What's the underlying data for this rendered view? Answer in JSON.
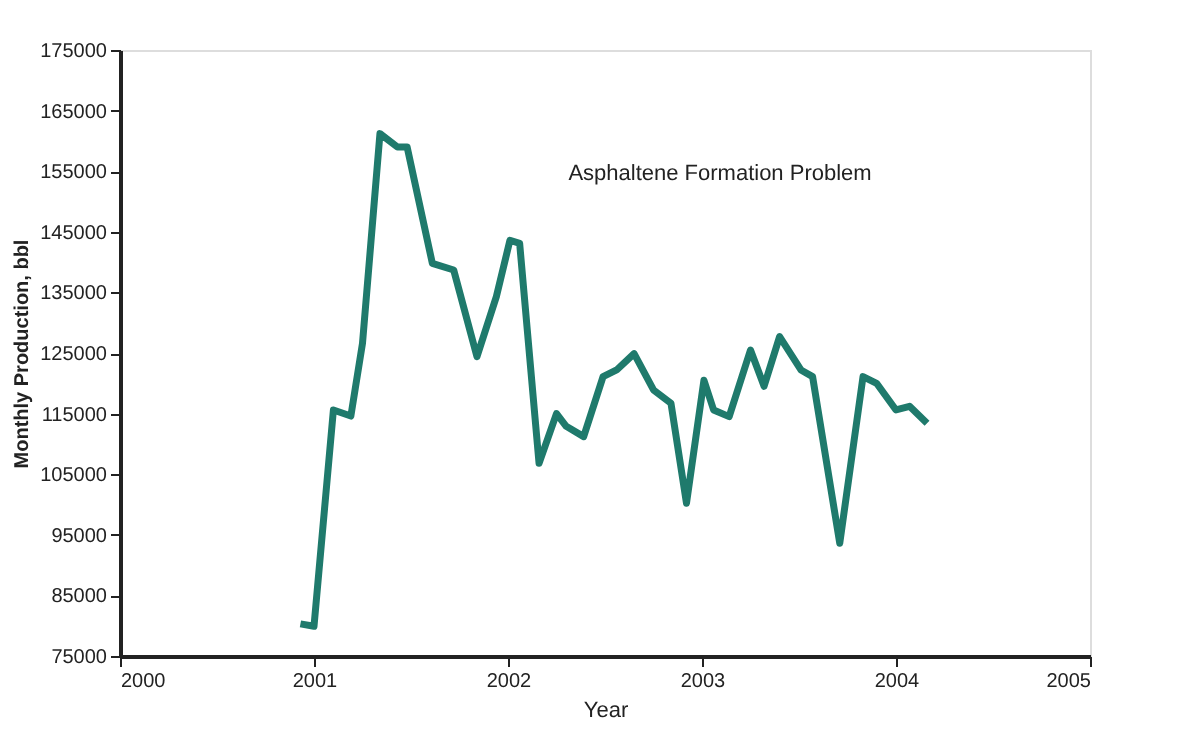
{
  "chart_data": {
    "type": "line",
    "xlabel": "Year",
    "ylabel": "Monthly Production, bbl",
    "annotations": [
      "Asphaltene Formation Problem"
    ],
    "xlim": [
      2000,
      2005
    ],
    "xticks": [
      2000,
      2001,
      2002,
      2003,
      2004,
      2005
    ],
    "ylim": [
      75000,
      175000
    ],
    "yticks": [
      75000,
      85000,
      95000,
      105000,
      115000,
      125000,
      135000,
      145000,
      155000,
      165000,
      175000
    ],
    "grid": false,
    "marker": "none",
    "line_style": "solid",
    "series": [
      {
        "color": "#1f7a6c",
        "x": [
          2000.93,
          2001.0,
          2001.1,
          2001.19,
          2001.25,
          2001.34,
          2001.43,
          2001.48,
          2001.61,
          2001.72,
          2001.84,
          2001.94,
          2002.01,
          2002.06,
          2002.16,
          2002.25,
          2002.3,
          2002.39,
          2002.49,
          2002.56,
          2002.65,
          2002.75,
          2002.84,
          2002.92,
          2003.01,
          2003.06,
          2003.14,
          2003.25,
          2003.32,
          2003.4,
          2003.51,
          2003.57,
          2003.71,
          2003.83,
          2003.9,
          2004.0,
          2004.07,
          2004.16
        ],
        "values": [
          80300,
          79900,
          115600,
          114600,
          126600,
          161200,
          159000,
          159000,
          139800,
          138700,
          124400,
          134300,
          143600,
          143100,
          106800,
          115000,
          112900,
          111200,
          121100,
          122200,
          124900,
          118900,
          116700,
          100200,
          120500,
          115600,
          114500,
          125500,
          119500,
          127700,
          122200,
          121100,
          93600,
          121100,
          120000,
          115600,
          116200,
          113400
        ]
      }
    ]
  }
}
